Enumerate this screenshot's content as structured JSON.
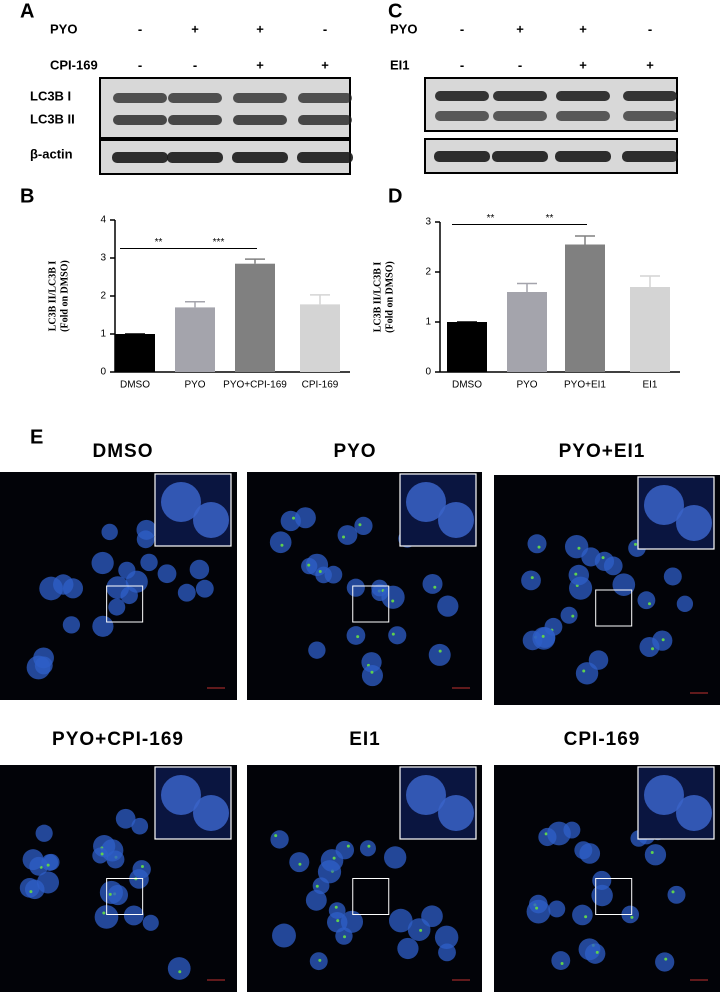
{
  "panel_a": {
    "letter": "A",
    "rows": [
      {
        "label": "PYO",
        "signs": [
          "-",
          "+",
          "+",
          "-"
        ]
      },
      {
        "label": "CPI-169",
        "signs": [
          "-",
          "-",
          "+",
          "+"
        ]
      }
    ],
    "bands": [
      "LC3B I",
      "LC3B II",
      "β-actin"
    ]
  },
  "panel_c": {
    "letter": "C",
    "rows": [
      {
        "label": "PYO",
        "signs": [
          "-",
          "+",
          "+",
          "-"
        ]
      },
      {
        "label": "EI1",
        "signs": [
          "-",
          "-",
          "+",
          "+"
        ]
      }
    ]
  },
  "chart_data": [
    {
      "type": "bar",
      "label": "B",
      "y_label": "LC3B II/LC3B I",
      "y_label_2": "(Fold on DMSO)",
      "categories": [
        "DMSO",
        "PYO",
        "PYO+CPI-169",
        "CPI-169"
      ],
      "values": [
        1,
        1.7,
        2.85,
        1.78
      ],
      "errors": [
        0,
        0.15,
        0.12,
        0.25
      ],
      "colors": [
        "#000000",
        "#a4a4ac",
        "#808080",
        "#d4d4d4"
      ],
      "ylim": [
        0,
        4
      ],
      "yticks": [
        0,
        1,
        2,
        3,
        4
      ],
      "annotations": [
        {
          "text": "**",
          "from": 0,
          "to": 1,
          "y": 3.25
        },
        {
          "text": "***",
          "from": 1,
          "to": 2,
          "y": 3.25
        }
      ]
    },
    {
      "type": "bar",
      "label": "D",
      "y_label": "LC3B II/LC3B I",
      "y_label_2": "(Fold on DMSO)",
      "categories": [
        "DMSO",
        "PYO",
        "PYO+EI1",
        "EI1"
      ],
      "values": [
        1,
        1.6,
        2.55,
        1.7
      ],
      "errors": [
        0,
        0.17,
        0.17,
        0.22
      ],
      "colors": [
        "#000000",
        "#a4a4ac",
        "#808080",
        "#d4d4d4"
      ],
      "ylim": [
        0,
        3
      ],
      "yticks": [
        0,
        1,
        2,
        3
      ],
      "annotations": [
        {
          "text": "**",
          "from": 0,
          "to": 1,
          "y": 2.95
        },
        {
          "text": "**",
          "from": 1,
          "to": 2,
          "y": 2.95
        }
      ]
    }
  ],
  "panel_e": {
    "letter": "E",
    "titles": [
      "DMSO",
      "PYO",
      "PYO+EI1",
      "PYO+CPI-169",
      "EI1",
      "CPI-169"
    ]
  }
}
